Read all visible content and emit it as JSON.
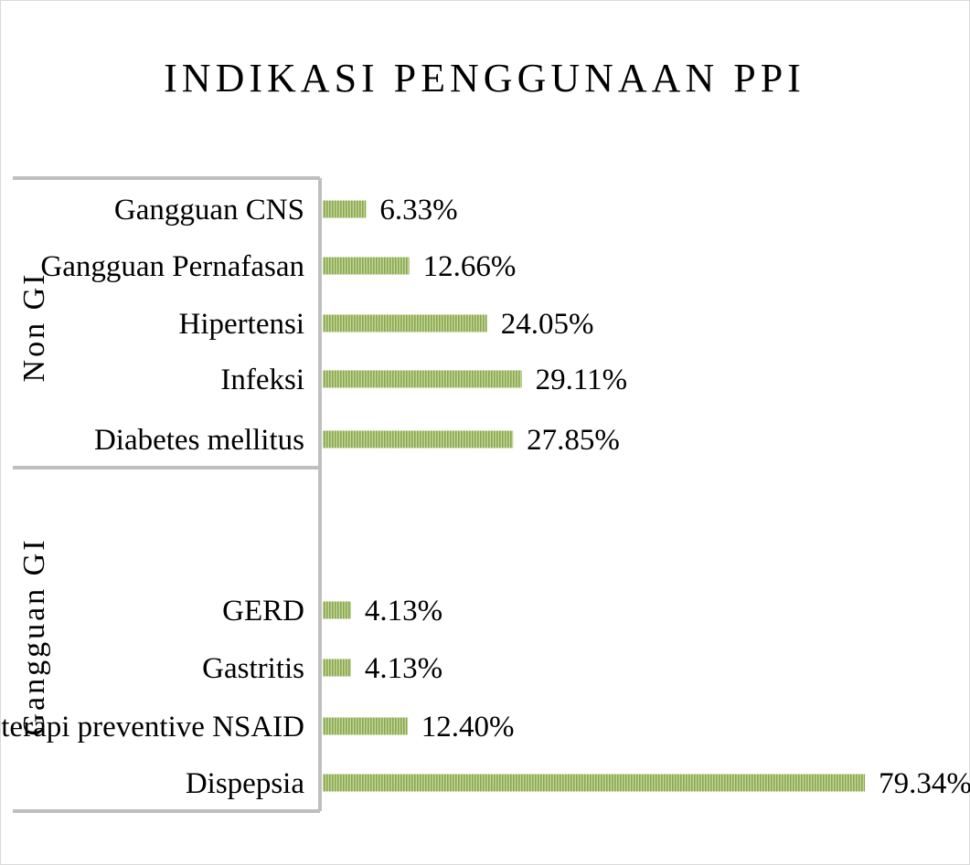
{
  "chart_data": {
    "type": "bar",
    "orientation": "horizontal",
    "title": "INDIKASI PENGGUNAAN PPI",
    "xlabel": "",
    "ylabel": "",
    "xlim": [
      0,
      80
    ],
    "grid": false,
    "legend": "none",
    "bar_color": "#9bbb59",
    "groups": [
      {
        "name": "Non GI",
        "categories": [
          "Gangguan CNS",
          "Gangguan Pernafasan",
          "Hipertensi",
          "Infeksi",
          "Diabetes mellitus"
        ],
        "values": [
          6.33,
          12.66,
          24.05,
          29.11,
          27.85
        ],
        "labels": [
          "6.33%",
          "12.66%",
          "24.05%",
          "29.11%",
          "27.85%"
        ]
      },
      {
        "name": "Gangguan GI",
        "categories": [
          "GERD",
          "Gastritis",
          "terapi preventive NSAID",
          "Dispepsia"
        ],
        "values": [
          4.13,
          4.13,
          12.4,
          79.34
        ],
        "labels": [
          "4.13%",
          "4.13%",
          "12.40%",
          "79.34%"
        ]
      }
    ]
  }
}
